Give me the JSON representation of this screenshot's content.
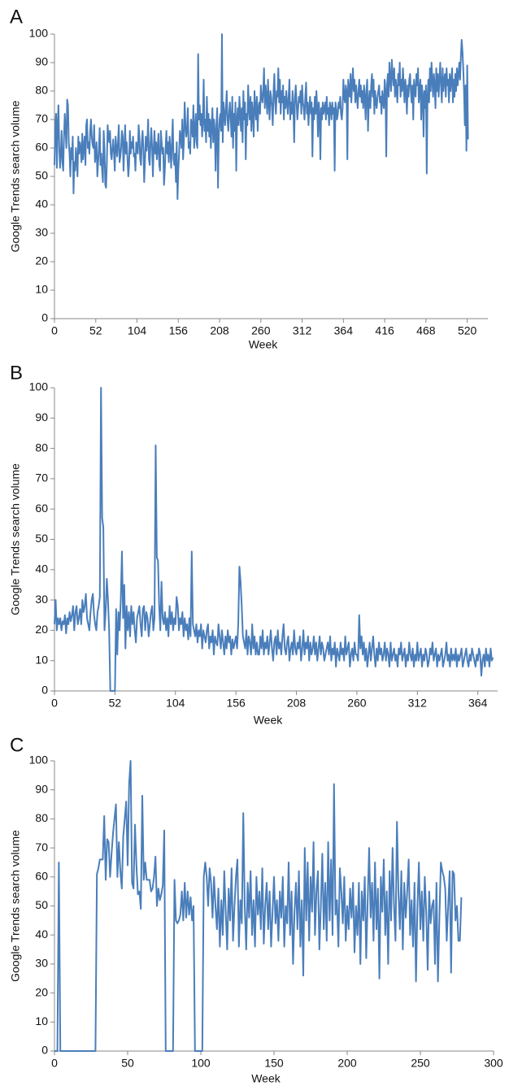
{
  "chart_data": [
    {
      "type": "line",
      "panel_label": "A",
      "x_label": "Week",
      "y_label": "Google Trends search volume",
      "color": "#4a7ebb",
      "xlim": [
        0,
        546
      ],
      "xticks": [
        0,
        52,
        104,
        156,
        208,
        260,
        312,
        364,
        416,
        468,
        520
      ],
      "ylim": [
        0,
        100
      ],
      "yticks": [
        0,
        10,
        20,
        30,
        40,
        50,
        60,
        70,
        80,
        90,
        100
      ],
      "values": [
        54,
        67,
        72,
        53,
        68,
        75,
        60,
        53,
        58,
        66,
        55,
        52,
        64,
        72,
        66,
        60,
        77,
        75,
        62,
        58,
        50,
        60,
        56,
        64,
        44,
        55,
        52,
        60,
        56,
        50,
        64,
        58,
        62,
        60,
        55,
        65,
        56,
        60,
        64,
        54,
        68,
        70,
        60,
        62,
        58,
        66,
        70,
        64,
        61,
        60,
        68,
        55,
        58,
        62,
        50,
        55,
        60,
        67,
        54,
        58,
        52,
        48,
        66,
        60,
        47,
        46,
        55,
        68,
        64,
        62,
        66,
        58,
        56,
        60,
        63,
        58,
        52,
        64,
        60,
        57,
        62,
        68,
        55,
        57,
        60,
        66,
        64,
        52,
        60,
        68,
        58,
        62,
        56,
        50,
        54,
        66,
        58,
        62,
        60,
        64,
        57,
        58,
        52,
        62,
        60,
        58,
        68,
        64,
        56,
        54,
        62,
        66,
        60,
        48,
        55,
        64,
        59,
        62,
        70,
        56,
        54,
        62,
        67,
        60,
        50,
        60,
        66,
        58,
        62,
        56,
        60,
        65,
        54,
        52,
        66,
        62,
        58,
        60,
        47,
        52,
        60,
        66,
        58,
        62,
        55,
        64,
        60,
        53,
        62,
        70,
        56,
        54,
        58,
        48,
        62,
        42,
        52,
        58,
        66,
        64,
        60,
        70,
        56,
        62,
        76,
        68,
        64,
        66,
        74,
        60,
        62,
        58,
        70,
        68,
        64,
        75,
        60,
        66,
        72,
        62,
        60,
        93,
        70,
        75,
        68,
        72,
        64,
        70,
        84,
        66,
        70,
        62,
        78,
        66,
        72,
        64,
        70,
        60,
        68,
        74,
        62,
        70,
        66,
        52,
        68,
        74,
        46,
        64,
        70,
        72,
        66,
        100,
        62,
        76,
        72,
        68,
        74,
        80,
        70,
        66,
        72,
        76,
        70,
        64,
        78,
        60,
        72,
        66,
        76,
        52,
        70,
        74,
        68,
        78,
        72,
        66,
        74,
        62,
        80,
        70,
        76,
        56,
        72,
        68,
        82,
        74,
        70,
        78,
        66,
        76,
        72,
        64,
        80,
        74,
        70,
        78,
        66,
        74,
        76,
        72,
        82,
        78,
        76,
        80,
        88,
        74,
        82,
        78,
        72,
        84,
        76,
        70,
        80,
        78,
        74,
        68,
        80,
        86,
        76,
        72,
        80,
        78,
        88,
        76,
        84,
        72,
        80,
        76,
        82,
        70,
        78,
        74,
        80,
        76,
        72,
        78,
        84,
        70,
        76,
        72,
        80,
        74,
        62,
        78,
        82,
        76,
        70,
        74,
        78,
        76,
        80,
        72,
        82,
        76,
        74,
        70,
        78,
        83,
        72,
        76,
        68,
        74,
        78,
        72,
        76,
        57,
        74,
        70,
        78,
        72,
        80,
        74,
        64,
        76,
        72,
        56,
        74,
        70,
        76,
        72,
        74,
        76,
        70,
        78,
        72,
        74,
        68,
        76,
        74,
        70,
        76,
        72,
        74,
        52,
        76,
        74,
        70,
        72,
        76,
        74,
        78,
        72,
        70,
        74,
        84,
        78,
        76,
        82,
        80,
        56,
        84,
        80,
        78,
        86,
        76,
        82,
        88,
        80,
        84,
        76,
        82,
        78,
        74,
        80,
        84,
        78,
        82,
        76,
        80,
        74,
        82,
        78,
        70,
        80,
        84,
        66,
        76,
        80,
        74,
        82,
        86,
        78,
        84,
        72,
        80,
        76,
        74,
        78,
        80,
        82,
        76,
        78,
        72,
        80,
        76,
        74,
        84,
        80,
        57,
        82,
        86,
        78,
        90,
        84,
        80,
        91,
        86,
        82,
        88,
        78,
        84,
        80,
        76,
        86,
        82,
        90,
        78,
        84,
        80,
        88,
        82,
        76,
        84,
        80,
        72,
        82,
        78,
        84,
        86,
        80,
        76,
        82,
        70,
        84,
        80,
        78,
        86,
        82,
        88,
        76,
        80,
        84,
        70,
        82,
        78,
        64,
        80,
        74,
        82,
        51,
        78,
        84,
        76,
        88,
        80,
        90,
        84,
        78,
        86,
        82,
        74,
        88,
        80,
        86,
        78,
        84,
        90,
        82,
        76,
        88,
        80,
        84,
        86,
        78,
        88,
        82,
        84,
        76,
        86,
        80,
        84,
        88,
        76,
        84,
        78,
        86,
        80,
        88,
        82,
        86,
        90,
        84,
        92,
        98,
        94,
        88,
        80,
        68,
        82,
        59,
        89,
        63
      ]
    },
    {
      "type": "line",
      "panel_label": "B",
      "x_label": "Week",
      "y_label": "Google Trends search volume",
      "color": "#4a7ebb",
      "xlim": [
        0,
        381
      ],
      "xticks": [
        0,
        52,
        104,
        156,
        208,
        260,
        312,
        364
      ],
      "ylim": [
        0,
        100
      ],
      "yticks": [
        0,
        10,
        20,
        30,
        40,
        50,
        60,
        70,
        80,
        90,
        100
      ],
      "values": [
        22,
        30,
        20,
        24,
        22,
        24,
        20,
        23,
        22,
        25,
        19,
        24,
        22,
        26,
        23,
        25,
        28,
        20,
        26,
        28,
        22,
        24,
        27,
        22,
        30,
        26,
        28,
        32,
        24,
        22,
        20,
        26,
        30,
        32,
        25,
        22,
        20,
        26,
        28,
        31,
        100,
        57,
        54,
        20,
        26,
        37,
        30,
        20,
        0,
        0,
        0,
        0,
        0,
        27,
        12,
        26,
        20,
        30,
        46,
        24,
        35,
        14,
        28,
        20,
        26,
        18,
        28,
        22,
        26,
        20,
        16,
        24,
        26,
        28,
        22,
        18,
        27,
        28,
        20,
        26,
        24,
        18,
        22,
        26,
        28,
        20,
        24,
        81,
        44,
        43,
        28,
        20,
        36,
        24,
        22,
        26,
        20,
        24,
        18,
        28,
        22,
        26,
        20,
        24,
        22,
        31,
        28,
        20,
        24,
        22,
        26,
        18,
        24,
        20,
        22,
        17,
        24,
        18,
        46,
        22,
        20,
        18,
        22,
        16,
        20,
        18,
        22,
        14,
        20,
        18,
        16,
        20,
        22,
        14,
        18,
        16,
        20,
        12,
        18,
        16,
        15,
        22,
        18,
        14,
        20,
        16,
        12,
        18,
        14,
        20,
        16,
        18,
        12,
        17,
        14,
        16,
        18,
        14,
        22,
        41,
        36,
        28,
        18,
        16,
        14,
        20,
        12,
        18,
        16,
        12,
        22,
        14,
        18,
        12,
        16,
        12,
        12,
        18,
        14,
        20,
        12,
        16,
        14,
        18,
        12,
        16,
        20,
        14,
        10,
        16,
        18,
        12,
        20,
        14,
        16,
        12,
        18,
        22,
        14,
        12,
        16,
        18,
        10,
        14,
        16,
        12,
        20,
        14,
        12,
        16,
        14,
        18,
        10,
        14,
        20,
        12,
        16,
        14,
        18,
        10,
        16,
        12,
        14,
        18,
        12,
        16,
        10,
        14,
        18,
        12,
        16,
        14,
        10,
        12,
        14,
        16,
        12,
        18,
        10,
        14,
        12,
        16,
        8,
        14,
        12,
        10,
        16,
        12,
        14,
        10,
        18,
        12,
        14,
        16,
        8,
        12,
        14,
        10,
        16,
        12,
        12,
        10,
        25,
        14,
        18,
        12,
        16,
        10,
        14,
        8,
        12,
        16,
        10,
        14,
        18,
        12,
        8,
        14,
        10,
        16,
        12,
        14,
        10,
        12,
        16,
        10,
        14,
        12,
        8,
        16,
        10,
        12,
        14,
        10,
        12,
        8,
        14,
        12,
        16,
        10,
        12,
        14,
        8,
        12,
        10,
        16,
        12,
        10,
        14,
        8,
        12,
        10,
        16,
        10,
        12,
        14,
        8,
        12,
        10,
        14,
        12,
        8,
        10,
        14,
        12,
        16,
        10,
        12,
        14,
        8,
        12,
        10,
        12,
        14,
        8,
        10,
        12,
        16,
        10,
        12,
        8,
        14,
        10,
        12,
        10,
        14,
        8,
        12,
        10,
        12,
        14,
        8,
        10,
        12,
        14,
        10,
        8,
        12,
        10,
        14,
        12,
        10,
        8,
        12,
        10,
        14,
        12,
        5,
        10,
        12,
        8,
        14,
        10,
        12,
        8,
        14,
        10,
        11
      ]
    },
    {
      "type": "line",
      "panel_label": "C",
      "x_label": "Week",
      "y_label": "Google Trends search volume",
      "color": "#4a7ebb",
      "xlim": [
        0,
        300
      ],
      "xticks": [
        0,
        50,
        100,
        150,
        200,
        250,
        300
      ],
      "ylim": [
        0,
        100
      ],
      "yticks": [
        0,
        10,
        20,
        30,
        40,
        50,
        60,
        70,
        80,
        90,
        100
      ],
      "values": [
        0,
        0,
        0,
        65,
        0,
        0,
        0,
        0,
        0,
        0,
        0,
        0,
        0,
        0,
        0,
        0,
        0,
        0,
        0,
        0,
        0,
        0,
        0,
        0,
        0,
        0,
        0,
        0,
        0,
        61,
        63,
        66,
        66,
        66,
        81,
        59,
        73,
        72,
        60,
        68,
        75,
        80,
        85,
        60,
        72,
        62,
        56,
        74,
        80,
        86,
        64,
        92,
        100,
        58,
        56,
        78,
        64,
        54,
        55,
        49,
        88,
        59,
        65,
        59,
        59,
        59,
        55,
        56,
        60,
        67,
        50,
        56,
        52,
        54,
        57,
        76,
        0,
        0,
        0,
        0,
        0,
        0,
        59,
        45,
        44,
        45,
        47,
        55,
        45,
        58,
        46,
        55,
        47,
        53,
        45,
        50,
        0,
        0,
        0,
        0,
        0,
        0,
        60,
        65,
        60,
        50,
        63,
        58,
        46,
        60,
        50,
        42,
        56,
        36,
        52,
        40,
        62,
        48,
        35,
        56,
        45,
        63,
        38,
        50,
        60,
        66,
        36,
        52,
        44,
        82,
        50,
        35,
        58,
        46,
        62,
        40,
        52,
        36,
        60,
        47,
        55,
        42,
        63,
        37,
        50,
        58,
        42,
        55,
        36,
        48,
        60,
        44,
        52,
        38,
        55,
        46,
        60,
        36,
        50,
        44,
        65,
        40,
        55,
        30,
        48,
        58,
        42,
        62,
        36,
        52,
        26,
        70,
        45,
        65,
        38,
        60,
        48,
        72,
        40,
        55,
        62,
        35,
        50,
        68,
        42,
        58,
        38,
        72,
        45,
        66,
        40,
        92,
        47,
        52,
        36,
        63,
        55,
        44,
        60,
        38,
        50,
        42,
        56,
        46,
        58,
        34,
        50,
        40,
        58,
        30,
        55,
        45,
        60,
        32,
        52,
        70,
        46,
        58,
        38,
        65,
        42,
        56,
        25,
        60,
        48,
        66,
        40,
        55,
        30,
        62,
        45,
        70,
        50,
        38,
        79,
        55,
        42,
        62,
        35,
        58,
        46,
        55,
        66,
        40,
        52,
        36,
        58,
        24,
        50,
        65,
        42,
        55,
        38,
        60,
        48,
        28,
        55,
        44,
        50,
        52,
        30,
        58,
        24,
        46,
        65,
        62,
        60,
        56,
        38,
        50,
        62,
        27,
        62,
        61,
        45,
        50,
        38,
        38,
        53
      ]
    }
  ]
}
